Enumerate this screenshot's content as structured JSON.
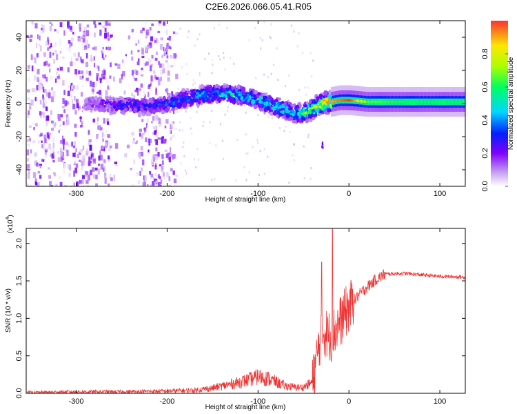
{
  "figure": {
    "title": "C2E6.2026.066.05.41.R05"
  },
  "chart_data": [
    {
      "type": "heatmap",
      "xlabel": "Height of straight line (km)",
      "ylabel": "Frequency (Hz)",
      "xlim": [
        -355,
        128
      ],
      "ylim": [
        -50,
        50
      ],
      "xticks": [
        -300,
        -200,
        -100,
        0,
        100
      ],
      "yticks": [
        -40,
        -20,
        0,
        20,
        40
      ],
      "colorbar": {
        "label": "Normalized spectral amplitude",
        "range": [
          0,
          1
        ],
        "ticks": [
          "0.0",
          "0.2",
          "0.4",
          "0.6",
          "0.8"
        ],
        "colormap": [
          "#ffffff",
          "#c9a4f2",
          "#8000ff",
          "#0020ff",
          "#00d8ff",
          "#00ff60",
          "#a8ff00",
          "#ffe600",
          "#ff3030"
        ]
      },
      "ridge": {
        "x": [
          -300,
          -280,
          -260,
          -240,
          -220,
          -200,
          -180,
          -160,
          -140,
          -120,
          -100,
          -80,
          -60,
          -50,
          -40,
          -30,
          -20,
          -10,
          0,
          20,
          60,
          100,
          128
        ],
        "freq_hz": [
          0,
          0,
          -1,
          -1,
          -2,
          0,
          3,
          5,
          6,
          5,
          2,
          -2,
          -6,
          -6,
          -3,
          0,
          1,
          2,
          2,
          1,
          1,
          1,
          1
        ],
        "peak_amplitude": [
          0.15,
          0.2,
          0.25,
          0.3,
          0.3,
          0.35,
          0.4,
          0.45,
          0.5,
          0.5,
          0.5,
          0.5,
          0.5,
          0.6,
          0.7,
          0.85,
          0.9,
          0.95,
          1.0,
          0.65,
          0.6,
          0.6,
          0.6
        ]
      },
      "noise": {
        "x_range": [
          -355,
          -190
        ],
        "gap_x": [
          -262,
          -240
        ],
        "amplitude": 0.25
      }
    },
    {
      "type": "line",
      "xlabel": "Height of straight line (km)",
      "ylabel": "SNR (10 * v/v)",
      "yscale_label": "(x10",
      "yscale_exp": "4",
      "xlim": [
        -355,
        128
      ],
      "ylim": [
        0,
        2.2
      ],
      "xticks": [
        -300,
        -200,
        -100,
        0,
        100
      ],
      "yticks": [
        "0.0",
        "0.5",
        "1.0",
        "1.5",
        "2.0"
      ],
      "line_color": "#f03535",
      "series": [
        {
          "x": [
            -355,
            -300,
            -250,
            -200,
            -170,
            -150,
            -130,
            -110,
            -100,
            -90,
            -80,
            -70,
            -60,
            -50,
            -40,
            -35,
            -30,
            -25,
            -20,
            -15,
            -10,
            -5,
            0,
            10,
            20,
            30,
            40,
            60,
            80,
            100,
            128
          ],
          "y": [
            0.01,
            0.02,
            0.02,
            0.03,
            0.04,
            0.07,
            0.12,
            0.18,
            0.22,
            0.2,
            0.15,
            0.1,
            0.08,
            0.08,
            0.15,
            0.5,
            0.85,
            0.8,
            0.75,
            0.85,
            0.95,
            1.05,
            1.15,
            1.3,
            1.42,
            1.52,
            1.59,
            1.6,
            1.58,
            1.56,
            1.55
          ],
          "spikes": [
            {
              "x": -30,
              "y": 1.75
            },
            {
              "x": -18,
              "y": 2.2
            }
          ]
        }
      ]
    }
  ]
}
